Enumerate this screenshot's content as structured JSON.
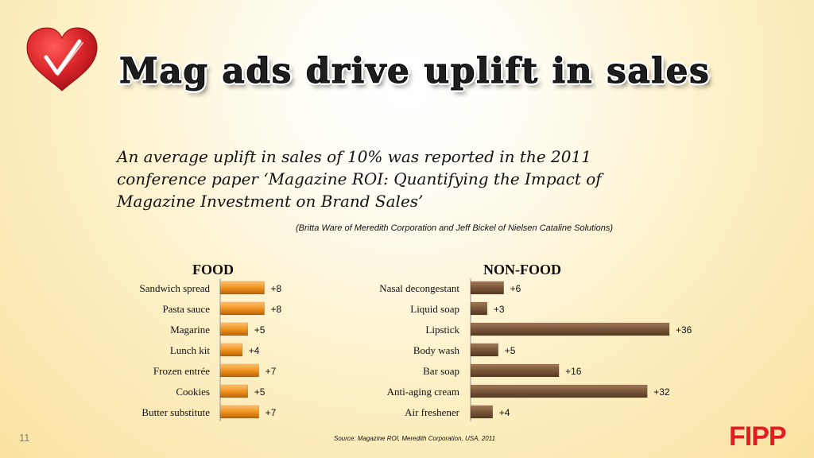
{
  "slide": {
    "title": "Mag ads drive uplift in sales",
    "quote": "An average uplift in sales of 10% was reported in the 2011 conference paper ‘Magazine ROI: Quantifying the Impact of Magazine Investment on Brand Sales’",
    "attribution": "(Britta Ware of Meredith Corporation and Jeff Bickel of Nielsen Cataline Solutions)",
    "source": "Source: Magazine ROI, Meredith Corporation, USA, 2011",
    "page_number": "11",
    "fipp_logo_text": "FIPP"
  },
  "colors": {
    "food_bar": "#f0931e",
    "nonfood_bar": "#7a5639",
    "heart": "#d9252b",
    "fipp": "#e31b23"
  },
  "icons": {
    "logo": "heart-checkmark-icon"
  },
  "chart_data": [
    {
      "type": "bar",
      "orientation": "horizontal",
      "title": "FOOD",
      "categories": [
        "Sandwich spread",
        "Pasta sauce",
        "Magarine",
        "Lunch kit",
        "Frozen entrée",
        "Cookies",
        "Butter substitute"
      ],
      "values": [
        8,
        8,
        5,
        4,
        7,
        5,
        7
      ],
      "labels": [
        "+8",
        "+8",
        "+5",
        "+4",
        "+7",
        "+5",
        "+7"
      ],
      "xlim": [
        0,
        36
      ],
      "grid": false,
      "legend": "none"
    },
    {
      "type": "bar",
      "orientation": "horizontal",
      "title": "NON-FOOD",
      "categories": [
        "Nasal decongestant",
        "Liquid soap",
        "Lipstick",
        "Body wash",
        "Bar soap",
        "Anti-aging cream",
        "Air freshener"
      ],
      "values": [
        6,
        3,
        36,
        5,
        16,
        32,
        4
      ],
      "labels": [
        "+6",
        "+3",
        "+36",
        "+5",
        "+16",
        "+32",
        "+4"
      ],
      "xlim": [
        0,
        36
      ],
      "grid": false,
      "legend": "none"
    }
  ]
}
